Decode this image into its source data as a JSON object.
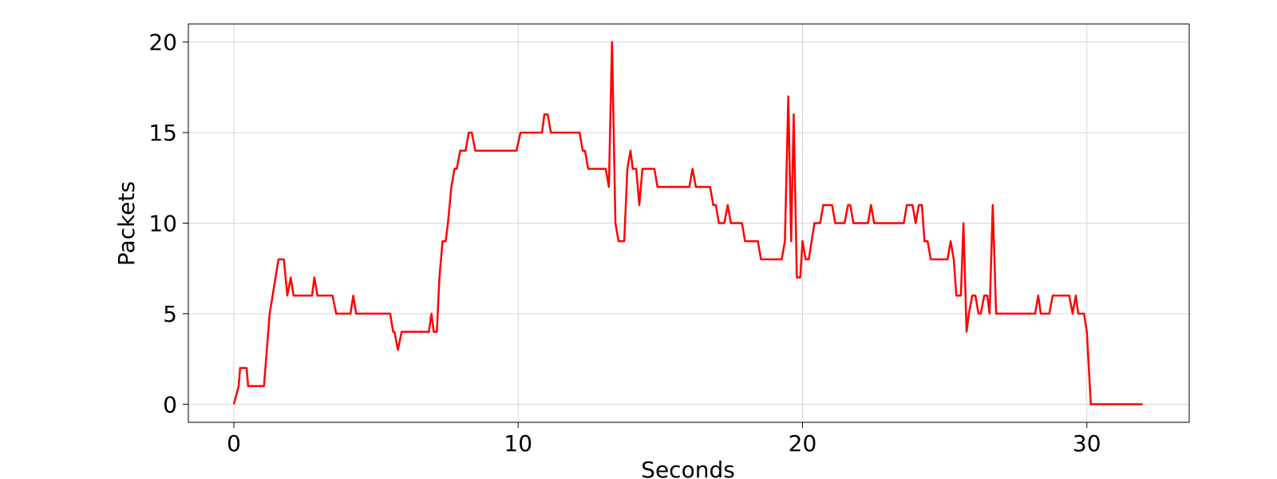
{
  "chart_data": {
    "type": "line",
    "xlabel": "Seconds",
    "ylabel": "Packets",
    "xlim": [
      -1.6,
      33.6
    ],
    "ylim": [
      -1,
      21
    ],
    "xticks": [
      0,
      10,
      20,
      30
    ],
    "yticks": [
      0,
      5,
      10,
      15,
      20
    ],
    "grid": true,
    "series": [
      {
        "color": "#ff0000",
        "x": [
          0,
          0.17,
          0.22,
          0.45,
          0.5,
          1.06,
          1.26,
          1.57,
          1.76,
          1.88,
          2.0,
          2.1,
          2.75,
          2.83,
          2.94,
          3.47,
          3.6,
          4.1,
          4.2,
          4.3,
          5.5,
          5.6,
          5.65,
          5.77,
          5.9,
          6.86,
          6.95,
          7.03,
          7.14,
          7.23,
          7.34,
          7.45,
          7.53,
          7.65,
          7.76,
          7.84,
          7.96,
          8.15,
          8.26,
          8.37,
          8.49,
          9.94,
          10.08,
          10.84,
          10.92,
          11.04,
          11.15,
          12.16,
          12.27,
          12.35,
          12.46,
          13.08,
          13.19,
          13.3,
          13.42,
          13.53,
          13.73,
          13.84,
          13.95,
          14.03,
          14.15,
          14.26,
          14.37,
          14.79,
          14.9,
          16.02,
          16.13,
          16.25,
          16.75,
          16.86,
          16.95,
          17.06,
          17.25,
          17.37,
          17.48,
          17.87,
          17.98,
          18.43,
          18.54,
          19.27,
          19.38,
          19.5,
          19.6,
          19.69,
          19.8,
          19.92,
          20.0,
          20.11,
          20.22,
          20.42,
          20.62,
          20.73,
          21.04,
          21.15,
          21.48,
          21.6,
          21.68,
          21.79,
          22.3,
          22.41,
          22.52,
          23.56,
          23.67,
          23.87,
          23.98,
          24.09,
          24.2,
          24.29,
          24.4,
          24.51,
          25.1,
          25.21,
          25.32,
          25.41,
          25.57,
          25.66,
          25.77,
          25.85,
          25.97,
          26.08,
          26.19,
          26.27,
          26.39,
          26.5,
          26.58,
          26.69,
          26.81,
          28.18,
          28.29,
          28.38,
          28.68,
          28.8,
          29.38,
          29.5,
          29.61,
          29.7,
          29.9,
          30.0,
          30.14,
          31.96
        ],
        "values": [
          0,
          1,
          2,
          2,
          1,
          1,
          5,
          8,
          8,
          6,
          7,
          6,
          6,
          7,
          6,
          6,
          5,
          5,
          6,
          5,
          5,
          4,
          4,
          3,
          4,
          4,
          5,
          4,
          4,
          7,
          9,
          9,
          10,
          12,
          13,
          13,
          14,
          14,
          15,
          15,
          14,
          14,
          15,
          15,
          16,
          16,
          15,
          15,
          14,
          14,
          13,
          13,
          12,
          20,
          10,
          9,
          9,
          13,
          14,
          13,
          13,
          11,
          13,
          13,
          12,
          12,
          13,
          12,
          12,
          11,
          11,
          10,
          10,
          11,
          10,
          10,
          9,
          9,
          8,
          8,
          9,
          17,
          9,
          16,
          7,
          7,
          9,
          8,
          8,
          10,
          10,
          11,
          11,
          10,
          10,
          11,
          11,
          10,
          10,
          11,
          10,
          10,
          11,
          11,
          10,
          11,
          11,
          9,
          9,
          8,
          8,
          9,
          8,
          6,
          6,
          10,
          4,
          5,
          6,
          6,
          5,
          5,
          6,
          6,
          5,
          11,
          5,
          5,
          6,
          5,
          5,
          6,
          6,
          5,
          6,
          5,
          5,
          4,
          0,
          0
        ]
      }
    ]
  }
}
